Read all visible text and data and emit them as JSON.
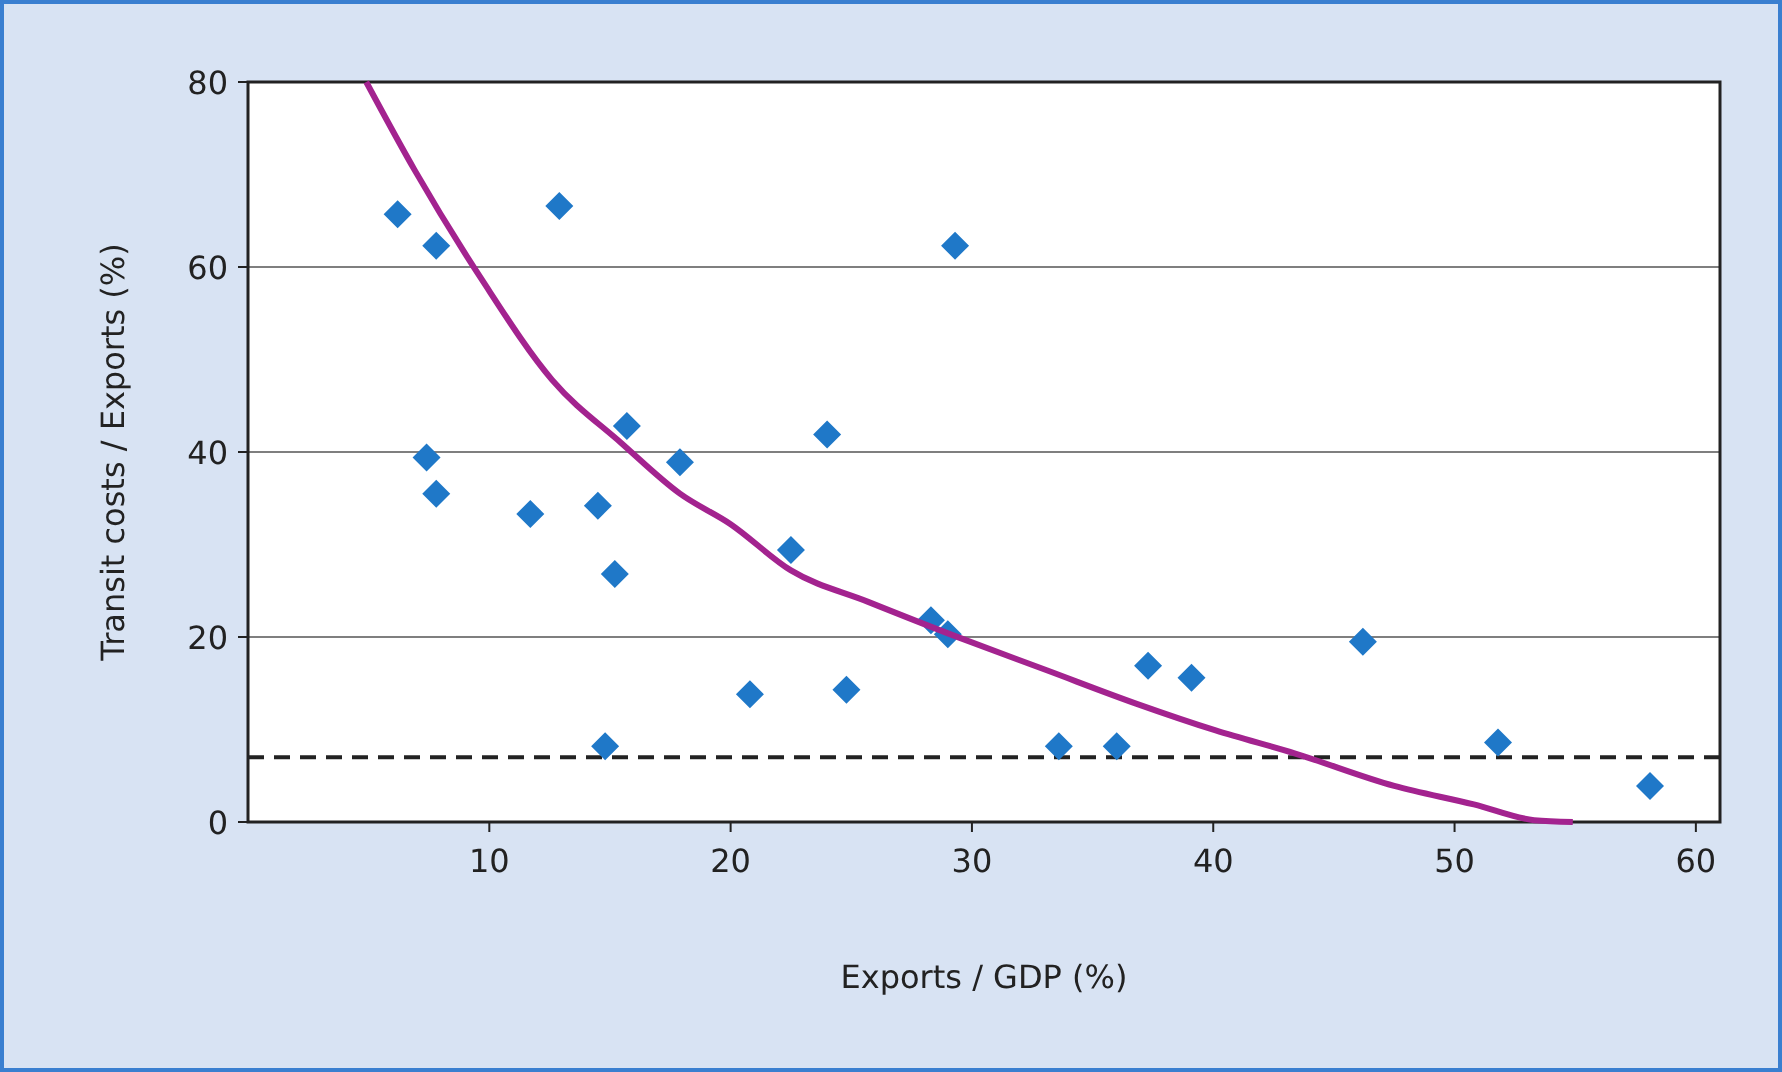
{
  "chart_data": {
    "type": "scatter",
    "xlabel": "Exports / GDP (%)",
    "ylabel": "Transit costs / Exports (%)",
    "xlim": [
      0,
      61
    ],
    "ylim": [
      0,
      80
    ],
    "xticks": [
      10,
      20,
      30,
      40,
      50,
      60
    ],
    "yticks": [
      0,
      20,
      40,
      60,
      80
    ],
    "grid": "y",
    "marker": "diamond",
    "ref_lines": [
      {
        "axis": "y",
        "value": 7,
        "label": null,
        "color": "#222222",
        "line_style": "dashed"
      }
    ],
    "series": [
      {
        "color": "#1f78c8",
        "x": [
          6.2,
          12.9,
          7.8,
          29.3,
          7.4,
          7.8,
          15.7,
          24.0,
          17.9,
          11.7,
          14.5,
          15.2,
          22.5,
          20.8,
          24.8,
          14.8,
          28.3,
          29.0,
          33.6,
          36.0,
          37.3,
          39.1,
          46.2,
          51.8,
          58.1
        ],
        "values": [
          65.7,
          66.6,
          62.3,
          62.3,
          39.4,
          35.5,
          42.8,
          41.9,
          38.9,
          33.3,
          34.2,
          26.8,
          29.4,
          13.8,
          14.3,
          8.2,
          21.8,
          20.3,
          8.2,
          8.2,
          16.9,
          15.6,
          19.5,
          8.6,
          3.9
        ]
      },
      {
        "type": "line",
        "color": "#a3238f",
        "marker": "none",
        "line_style": "solid",
        "x": [
          4.9,
          6.9,
          9.7,
          12.6,
          15.5,
          17.9,
          20,
          22.5,
          25.7,
          29.5,
          33.1,
          36.8,
          40.1,
          43.4,
          47.5,
          50.8,
          53.3,
          54.9
        ],
        "values": [
          80,
          70.5,
          58.6,
          47.8,
          40.9,
          35.5,
          32.2,
          27.2,
          23.8,
          19.9,
          16.4,
          12.8,
          9.9,
          7.4,
          3.9,
          1.9,
          0.2,
          0
        ]
      }
    ]
  }
}
